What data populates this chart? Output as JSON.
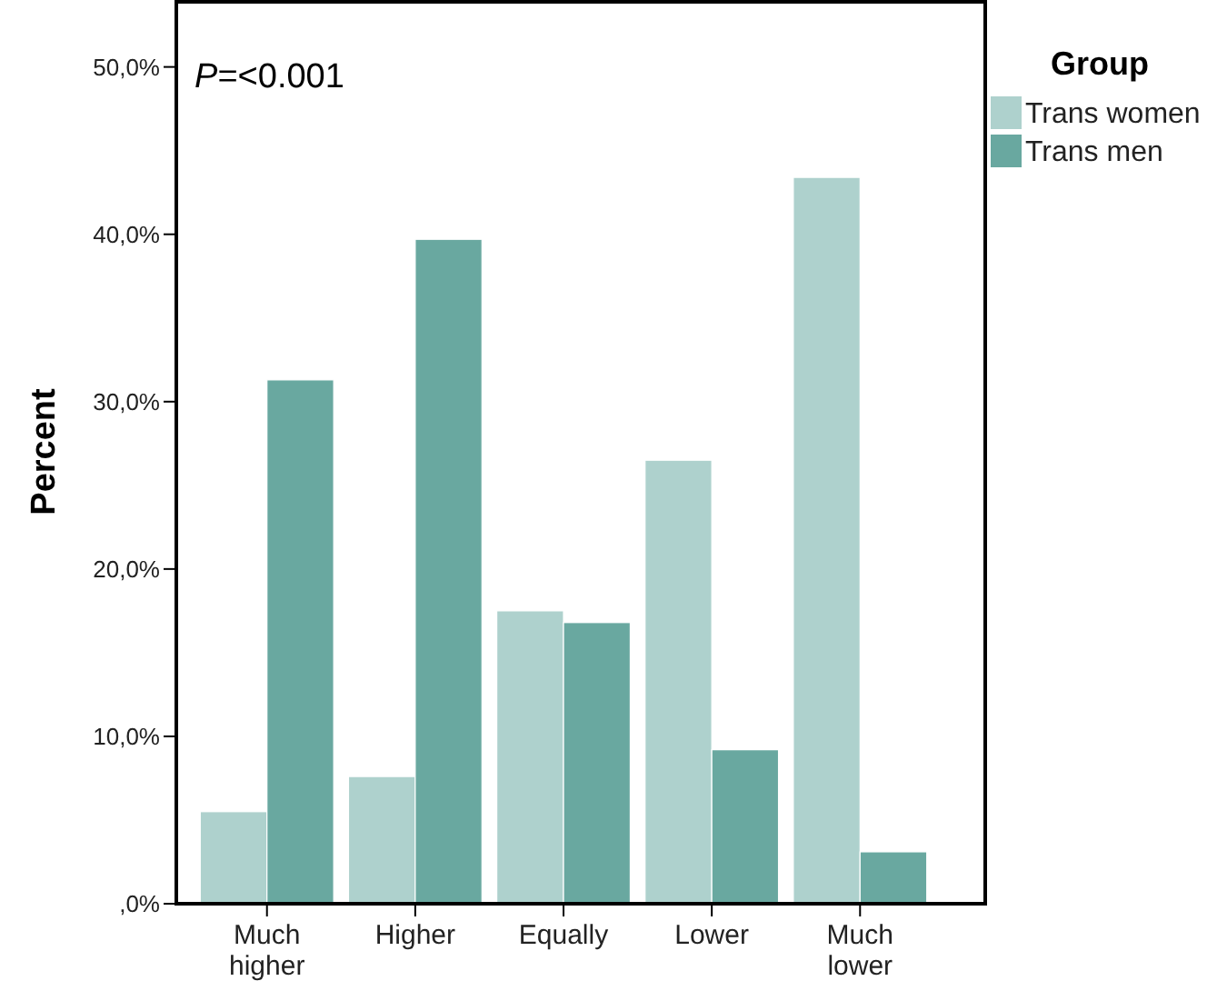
{
  "chart_data": {
    "type": "bar",
    "ylabel": "Percent",
    "legend_title": "Group",
    "legend": "right",
    "categories": [
      "Much higher",
      "Higher",
      "Equally",
      "Lower",
      "Much lower"
    ],
    "series": [
      {
        "name": "Trans women",
        "color": "#aed1cd",
        "values": [
          5.5,
          7.6,
          17.5,
          26.5,
          43.4
        ]
      },
      {
        "name": "Trans men",
        "color": "#69a8a0",
        "values": [
          31.3,
          39.7,
          16.8,
          9.2,
          3.1
        ]
      }
    ],
    "ylim": [
      0,
      54
    ],
    "yticks": [
      {
        "value": 0,
        "label": ",0%"
      },
      {
        "value": 10,
        "label": "10,0%"
      },
      {
        "value": 20,
        "label": "20,0%"
      },
      {
        "value": 30,
        "label": "30,0%"
      },
      {
        "value": 40,
        "label": "40,0%"
      },
      {
        "value": 50,
        "label": "50,0%"
      }
    ],
    "annotations": [
      "P=<0.001"
    ]
  }
}
